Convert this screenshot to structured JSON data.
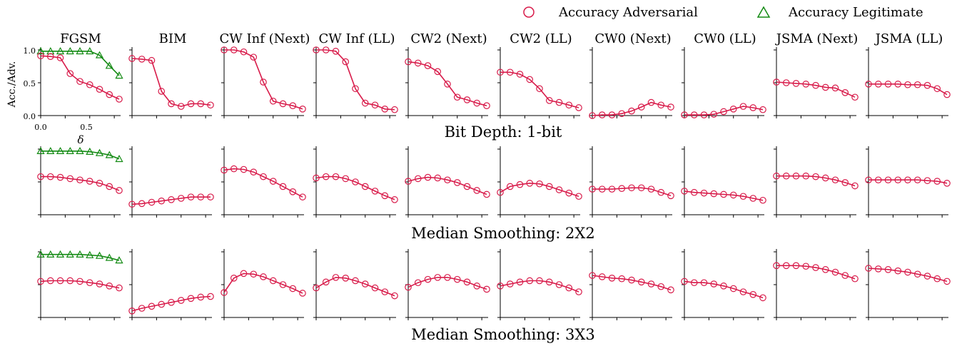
{
  "legend": {
    "items": [
      {
        "label": "Accuracy Adversarial",
        "color": "#d81b4a",
        "marker": "circle"
      },
      {
        "label": "Accuracy Legitimate",
        "color": "#138a13",
        "marker": "triangle"
      }
    ]
  },
  "colors": {
    "adversarial": "#d81b4a",
    "legitimate": "#138a13",
    "axis": "#000000"
  },
  "axes": {
    "ylabel": "Acc./Adv.",
    "xlabel": "δ",
    "yticks": [
      "0.0",
      "0.5",
      "1.0"
    ],
    "xticks": [
      "0.0",
      "0.5"
    ]
  },
  "columns": [
    "FGSM",
    "BIM",
    "CW Inf (Next)",
    "CW Inf (LL)",
    "CW2 (Next)",
    "CW2 (LL)",
    "CW0 (Next)",
    "CW0 (LL)",
    "JSMA (Next)",
    "JSMA (LL)"
  ],
  "chart_data": {
    "type": "line",
    "x": [
      0.0,
      0.1,
      0.2,
      0.3,
      0.4,
      0.5,
      0.6,
      0.7,
      0.8
    ],
    "xlim": [
      0.0,
      0.8
    ],
    "ylim": [
      0.0,
      1.0
    ],
    "rows": [
      {
        "title": "Bit Depth: 1-bit",
        "series": [
          {
            "column": "FGSM",
            "adversarial": [
              0.91,
              0.9,
              0.88,
              0.64,
              0.52,
              0.47,
              0.4,
              0.32,
              0.25
            ],
            "legitimate": [
              0.98,
              0.98,
              0.98,
              0.98,
              0.98,
              0.98,
              0.92,
              0.76,
              0.61
            ]
          },
          {
            "column": "BIM",
            "adversarial": [
              0.87,
              0.86,
              0.84,
              0.37,
              0.18,
              0.14,
              0.18,
              0.18,
              0.16
            ]
          },
          {
            "column": "CW Inf (Next)",
            "adversarial": [
              1.0,
              1.0,
              0.97,
              0.89,
              0.51,
              0.22,
              0.18,
              0.15,
              0.1
            ]
          },
          {
            "column": "CW Inf (LL)",
            "adversarial": [
              1.0,
              1.0,
              0.98,
              0.82,
              0.41,
              0.19,
              0.16,
              0.1,
              0.09
            ]
          },
          {
            "column": "CW2 (Next)",
            "adversarial": [
              0.82,
              0.8,
              0.76,
              0.67,
              0.48,
              0.28,
              0.24,
              0.19,
              0.15
            ]
          },
          {
            "column": "CW2 (LL)",
            "adversarial": [
              0.66,
              0.66,
              0.63,
              0.55,
              0.41,
              0.23,
              0.2,
              0.16,
              0.12
            ]
          },
          {
            "column": "CW0 (Next)",
            "adversarial": [
              0.0,
              0.01,
              0.01,
              0.03,
              0.07,
              0.13,
              0.2,
              0.16,
              0.13
            ]
          },
          {
            "column": "CW0 (LL)",
            "adversarial": [
              0.01,
              0.01,
              0.01,
              0.02,
              0.06,
              0.1,
              0.14,
              0.12,
              0.09
            ]
          },
          {
            "column": "JSMA (Next)",
            "adversarial": [
              0.51,
              0.5,
              0.49,
              0.48,
              0.46,
              0.43,
              0.42,
              0.35,
              0.28
            ]
          },
          {
            "column": "JSMA (LL)",
            "adversarial": [
              0.48,
              0.48,
              0.48,
              0.48,
              0.47,
              0.47,
              0.46,
              0.41,
              0.32
            ]
          }
        ]
      },
      {
        "title": "Median Smoothing: 2X2",
        "series": [
          {
            "column": "FGSM",
            "adversarial": [
              0.58,
              0.58,
              0.57,
              0.55,
              0.53,
              0.51,
              0.48,
              0.43,
              0.37
            ],
            "legitimate": [
              0.97,
              0.97,
              0.97,
              0.97,
              0.97,
              0.96,
              0.94,
              0.91,
              0.85
            ]
          },
          {
            "column": "BIM",
            "adversarial": [
              0.16,
              0.17,
              0.19,
              0.21,
              0.23,
              0.25,
              0.27,
              0.27,
              0.27
            ]
          },
          {
            "column": "CW Inf (Next)",
            "adversarial": [
              0.68,
              0.7,
              0.69,
              0.65,
              0.58,
              0.51,
              0.43,
              0.35,
              0.27
            ]
          },
          {
            "column": "CW Inf (LL)",
            "adversarial": [
              0.56,
              0.58,
              0.58,
              0.55,
              0.5,
              0.43,
              0.36,
              0.29,
              0.23
            ]
          },
          {
            "column": "CW2 (Next)",
            "adversarial": [
              0.51,
              0.55,
              0.57,
              0.56,
              0.53,
              0.49,
              0.43,
              0.37,
              0.31
            ]
          },
          {
            "column": "CW2 (LL)",
            "adversarial": [
              0.34,
              0.43,
              0.46,
              0.48,
              0.47,
              0.43,
              0.38,
              0.33,
              0.28
            ]
          },
          {
            "column": "CW0 (Next)",
            "adversarial": [
              0.39,
              0.39,
              0.39,
              0.4,
              0.41,
              0.41,
              0.39,
              0.34,
              0.29
            ]
          },
          {
            "column": "CW0 (LL)",
            "adversarial": [
              0.36,
              0.34,
              0.33,
              0.32,
              0.31,
              0.3,
              0.28,
              0.25,
              0.22
            ]
          },
          {
            "column": "JSMA (Next)",
            "adversarial": [
              0.59,
              0.59,
              0.59,
              0.59,
              0.58,
              0.56,
              0.53,
              0.49,
              0.44
            ]
          },
          {
            "column": "JSMA (LL)",
            "adversarial": [
              0.53,
              0.53,
              0.53,
              0.53,
              0.53,
              0.53,
              0.52,
              0.51,
              0.48
            ]
          }
        ]
      },
      {
        "title": "Median Smoothing: 3X3",
        "series": [
          {
            "column": "FGSM",
            "adversarial": [
              0.55,
              0.56,
              0.56,
              0.56,
              0.55,
              0.53,
              0.51,
              0.48,
              0.45
            ],
            "legitimate": [
              0.96,
              0.96,
              0.96,
              0.96,
              0.96,
              0.95,
              0.94,
              0.91,
              0.87
            ]
          },
          {
            "column": "BIM",
            "adversarial": [
              0.1,
              0.14,
              0.17,
              0.2,
              0.23,
              0.26,
              0.29,
              0.31,
              0.32
            ]
          },
          {
            "column": "CW Inf (Next)",
            "adversarial": [
              0.38,
              0.6,
              0.67,
              0.66,
              0.62,
              0.56,
              0.5,
              0.44,
              0.37
            ]
          },
          {
            "column": "CW Inf (LL)",
            "adversarial": [
              0.45,
              0.54,
              0.61,
              0.6,
              0.56,
              0.51,
              0.45,
              0.39,
              0.33
            ]
          },
          {
            "column": "CW2 (Next)",
            "adversarial": [
              0.46,
              0.53,
              0.58,
              0.61,
              0.61,
              0.58,
              0.54,
              0.48,
              0.43
            ]
          },
          {
            "column": "CW2 (LL)",
            "adversarial": [
              0.48,
              0.51,
              0.54,
              0.56,
              0.56,
              0.54,
              0.5,
              0.45,
              0.39
            ]
          },
          {
            "column": "CW0 (Next)",
            "adversarial": [
              0.64,
              0.62,
              0.6,
              0.59,
              0.57,
              0.54,
              0.51,
              0.47,
              0.42
            ]
          },
          {
            "column": "CW0 (LL)",
            "adversarial": [
              0.55,
              0.53,
              0.53,
              0.51,
              0.48,
              0.44,
              0.39,
              0.35,
              0.3
            ]
          },
          {
            "column": "JSMA (Next)",
            "adversarial": [
              0.79,
              0.79,
              0.79,
              0.78,
              0.76,
              0.73,
              0.69,
              0.64,
              0.59
            ]
          },
          {
            "column": "JSMA (LL)",
            "adversarial": [
              0.75,
              0.74,
              0.73,
              0.71,
              0.69,
              0.66,
              0.63,
              0.59,
              0.55
            ]
          }
        ]
      }
    ]
  }
}
